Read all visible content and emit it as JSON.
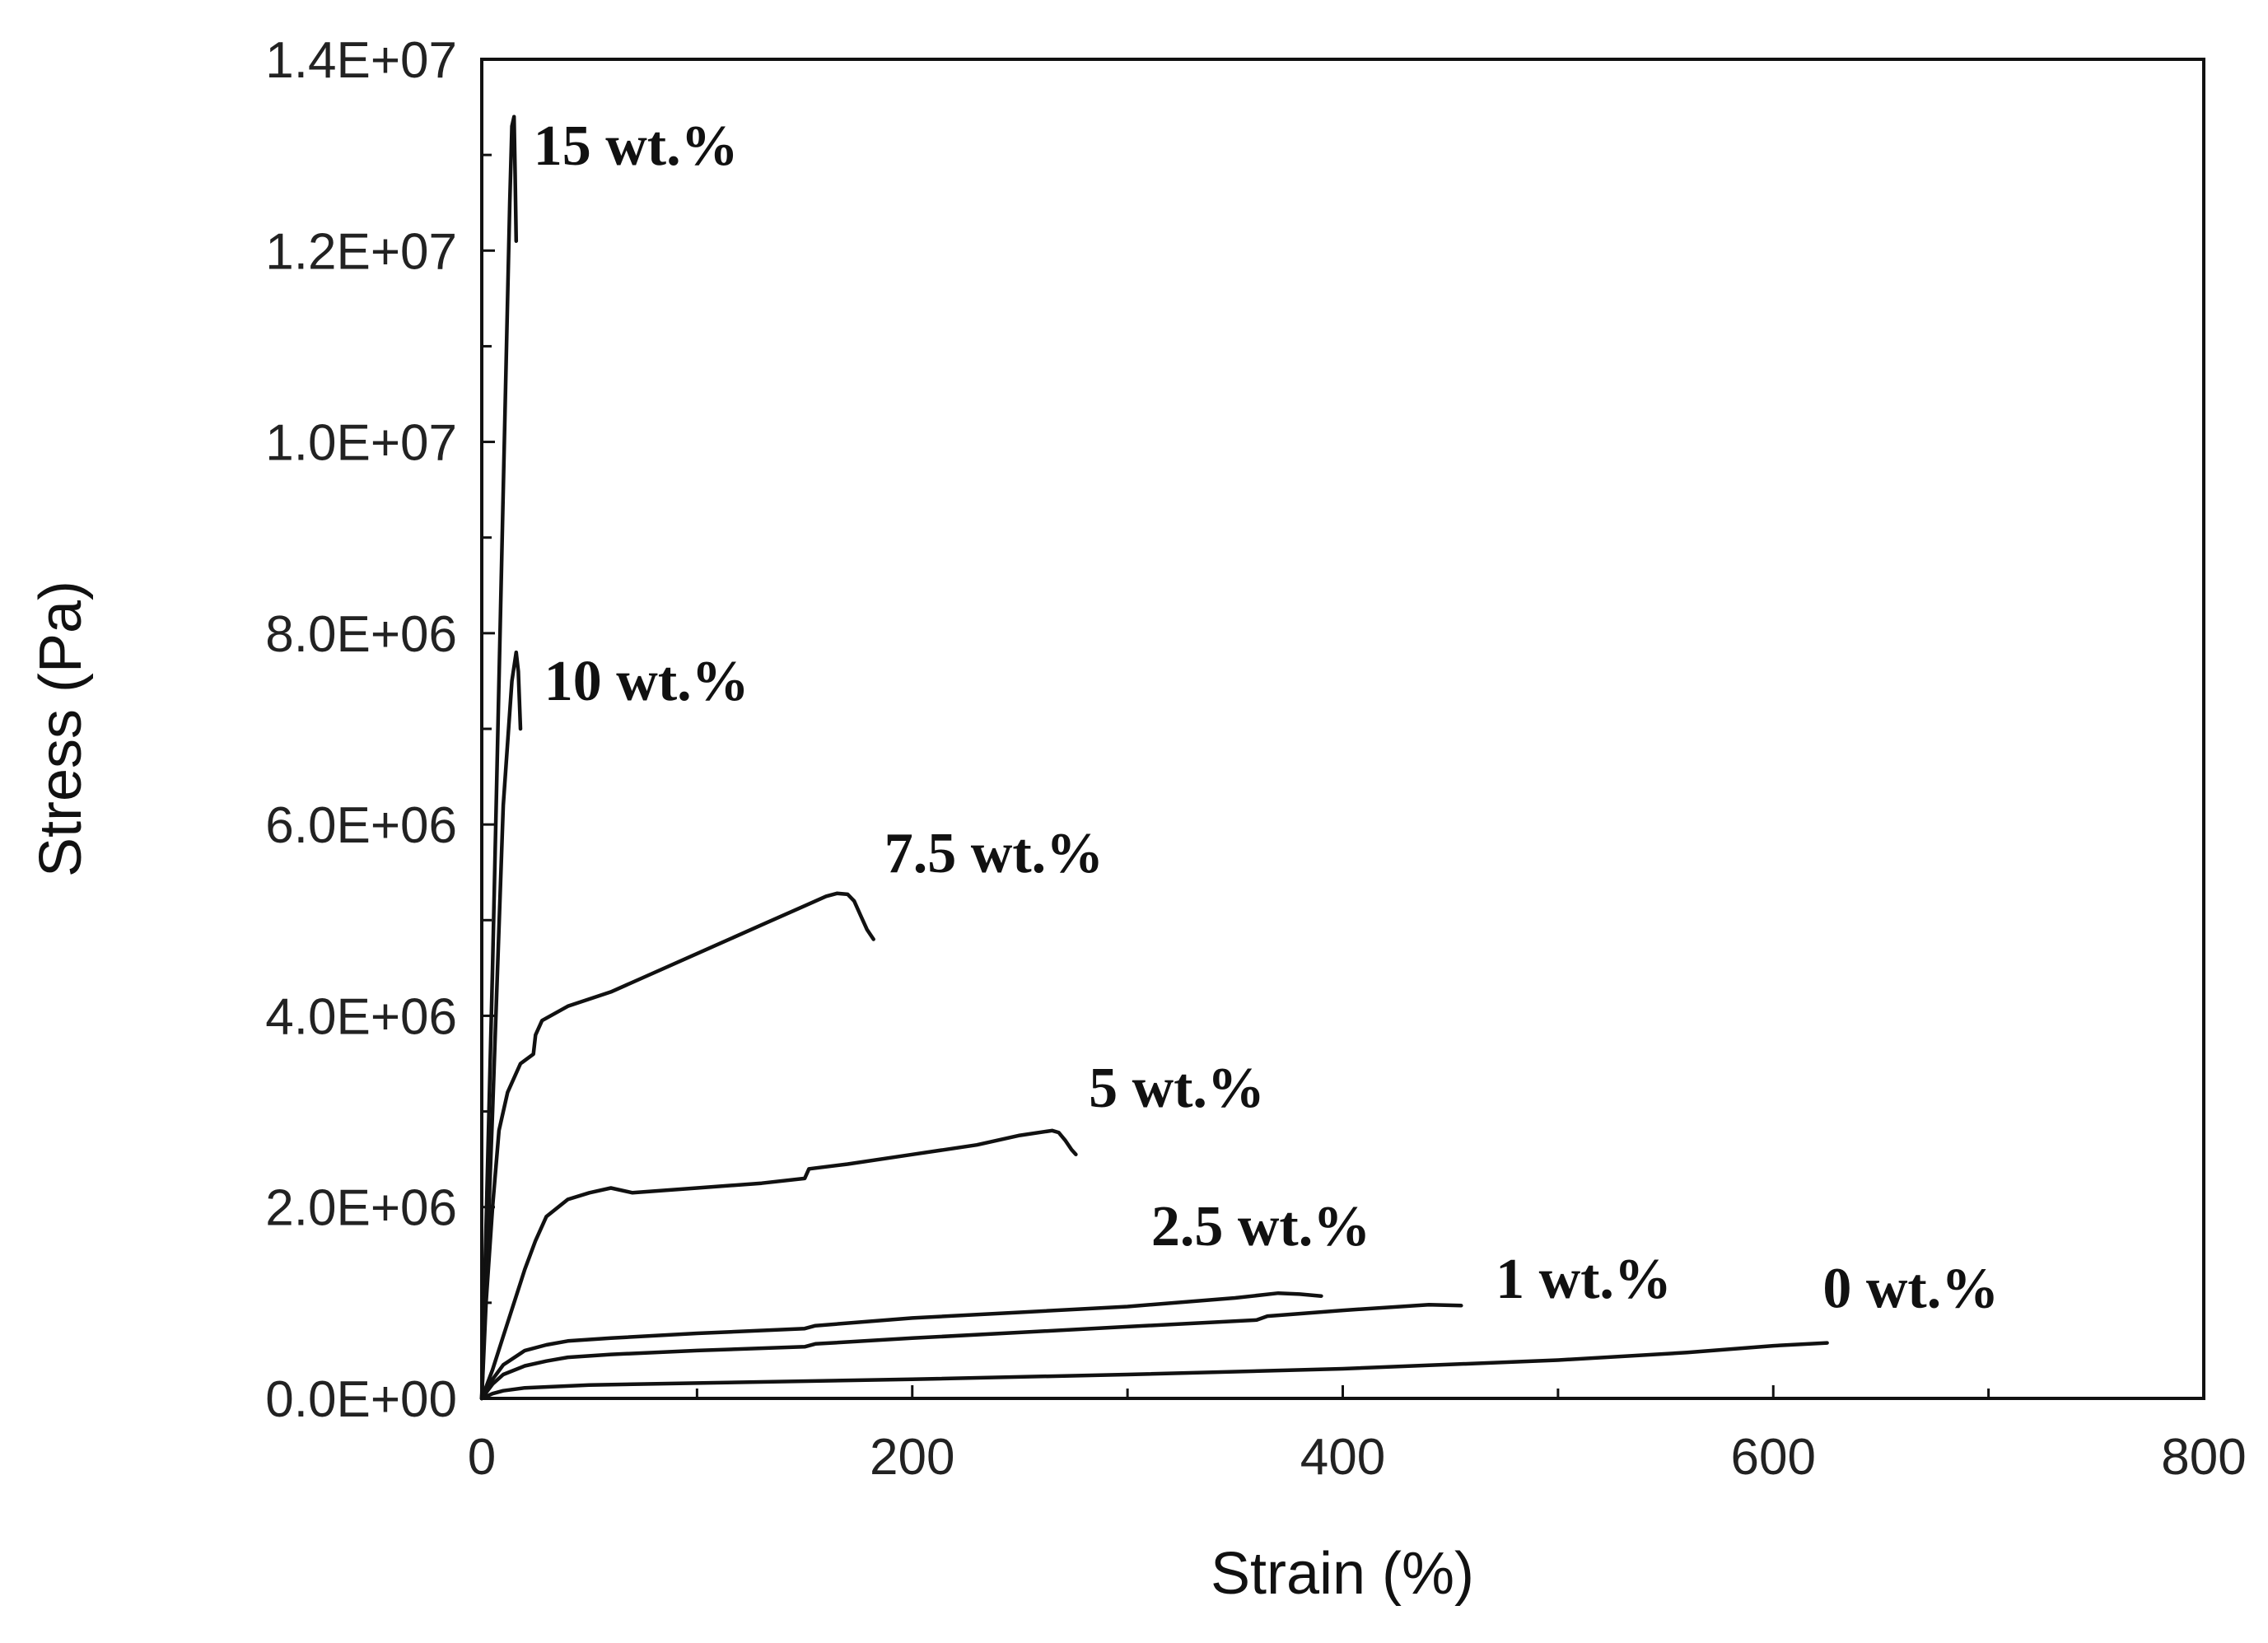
{
  "chart_data": {
    "type": "line",
    "title": "",
    "xlabel": "Strain (%)",
    "ylabel": "Stress (Pa)",
    "xlim": [
      0,
      800
    ],
    "ylim": [
      0,
      14000000
    ],
    "x_ticks": [
      0,
      200,
      400,
      600,
      800
    ],
    "x_tick_labels": [
      "0",
      "200",
      "400",
      "600",
      "800"
    ],
    "x_minor_step": 100,
    "y_ticks": [
      0,
      2000000,
      4000000,
      6000000,
      8000000,
      10000000,
      12000000,
      14000000
    ],
    "y_tick_labels": [
      "0.0E+00",
      "2.0E+06",
      "4.0E+06",
      "6.0E+06",
      "8.0E+06",
      "1.0E+07",
      "1.2E+07",
      "1.4E+07"
    ],
    "y_minor_step": 1000000,
    "grid": false,
    "legend": "inline labels at curve ends",
    "series": [
      {
        "name": "15 wt.%",
        "x": [
          0,
          5,
          10,
          13,
          14,
          15,
          15.5,
          16
        ],
        "y": [
          0,
          4500000,
          9500000,
          12500000,
          13300000,
          13400000,
          12800000,
          12100000
        ]
      },
      {
        "name": "10 wt.%",
        "x": [
          0,
          5,
          10,
          14,
          16,
          17,
          17.5,
          18
        ],
        "y": [
          0,
          3000000,
          6200000,
          7500000,
          7800000,
          7600000,
          7300000,
          7000000
        ]
      },
      {
        "name": "7.5 wt.%",
        "x": [
          0,
          2,
          5,
          8,
          12,
          18,
          24,
          25,
          28,
          40,
          60,
          75,
          100,
          130,
          150,
          160,
          165,
          170,
          173,
          176,
          179,
          182
        ],
        "y": [
          0,
          1000000,
          2000000,
          2800000,
          3200000,
          3500000,
          3600000,
          3800000,
          3950000,
          4100000,
          4250000,
          4400000,
          4650000,
          4950000,
          5150000,
          5250000,
          5280000,
          5270000,
          5200000,
          5050000,
          4900000,
          4800000
        ]
      },
      {
        "name": "5 wt.%",
        "x": [
          0,
          5,
          10,
          20,
          25,
          30,
          40,
          50,
          60,
          70,
          100,
          130,
          150,
          152,
          170,
          200,
          230,
          250,
          265,
          268,
          271,
          274,
          276
        ],
        "y": [
          0,
          300000,
          650000,
          1350000,
          1650000,
          1900000,
          2080000,
          2150000,
          2200000,
          2150000,
          2200000,
          2250000,
          2300000,
          2400000,
          2450000,
          2550000,
          2650000,
          2750000,
          2800000,
          2780000,
          2700000,
          2600000,
          2550000
        ]
      },
      {
        "name": "2.5 wt.%",
        "x": [
          0,
          5,
          10,
          20,
          30,
          40,
          60,
          100,
          150,
          155,
          200,
          250,
          300,
          350,
          370,
          380,
          390
        ],
        "y": [
          0,
          200000,
          350000,
          500000,
          560000,
          600000,
          630000,
          680000,
          730000,
          760000,
          840000,
          900000,
          960000,
          1050000,
          1100000,
          1090000,
          1070000
        ]
      },
      {
        "name": "1 wt.%",
        "x": [
          0,
          5,
          10,
          20,
          30,
          40,
          60,
          100,
          150,
          155,
          200,
          250,
          300,
          360,
          365,
          400,
          440,
          455
        ],
        "y": [
          0,
          150000,
          250000,
          340000,
          390000,
          430000,
          460000,
          500000,
          540000,
          570000,
          630000,
          690000,
          750000,
          820000,
          860000,
          920000,
          980000,
          970000
        ]
      },
      {
        "name": "0 wt.%",
        "x": [
          0,
          5,
          10,
          20,
          50,
          100,
          200,
          300,
          400,
          500,
          560,
          600,
          625
        ],
        "y": [
          0,
          50000,
          80000,
          110000,
          140000,
          160000,
          200000,
          250000,
          310000,
          400000,
          480000,
          550000,
          580000
        ]
      }
    ],
    "annotations": [
      {
        "text": "15 wt.%",
        "x": 24,
        "y": 12900000
      },
      {
        "text": "10 wt.%",
        "x": 29,
        "y": 7300000
      },
      {
        "text": "7.5 wt.%",
        "x": 187,
        "y": 5500000
      },
      {
        "text": "5 wt.%",
        "x": 282,
        "y": 3050000
      },
      {
        "text": "2.5 wt.%",
        "x": 311,
        "y": 1600000
      },
      {
        "text": "1 wt.%",
        "x": 471,
        "y": 1050000
      },
      {
        "text": "0 wt.%",
        "x": 623,
        "y": 950000
      }
    ]
  }
}
